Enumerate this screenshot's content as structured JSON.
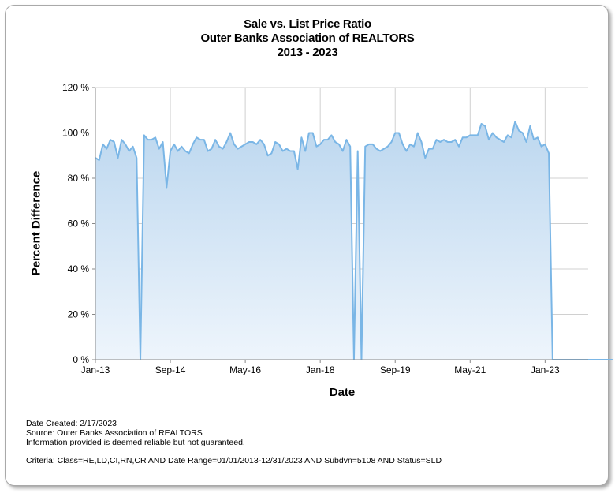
{
  "chart_data": {
    "type": "area",
    "title": [
      "Sale vs. List Price Ratio",
      "Outer Banks Association of REALTORS",
      "2013 - 2023"
    ],
    "ylabel": "Percent Difference",
    "xlabel": "Date",
    "ylim": [
      0,
      120
    ],
    "yticks": [
      "0 %",
      "20 %",
      "40 %",
      "60 %",
      "80 %",
      "100 %",
      "120 %"
    ],
    "xticks": [
      "Jan-13",
      "Sep-14",
      "May-16",
      "Jan-18",
      "Sep-19",
      "May-21",
      "Jan-23"
    ],
    "grid": true,
    "series": [
      {
        "start_month": "Jan-13",
        "values": [
          89,
          88,
          95,
          93,
          97,
          96,
          89,
          97,
          95,
          92,
          94,
          89,
          0,
          99,
          97,
          97,
          98,
          93,
          96,
          76,
          92,
          95,
          92,
          94,
          92,
          91,
          95,
          98,
          97,
          97,
          92,
          93,
          97,
          94,
          93,
          96,
          100,
          95,
          93,
          94,
          95,
          96,
          96,
          95,
          97,
          95,
          90,
          91,
          96,
          95,
          92,
          93,
          92,
          92,
          84,
          98,
          92,
          100,
          100,
          94,
          95,
          97,
          97,
          99,
          96,
          95,
          92,
          97,
          94,
          0,
          92,
          0,
          94,
          95,
          95,
          93,
          92,
          93,
          94,
          96,
          100,
          100,
          95,
          92,
          95,
          94,
          100,
          96,
          89,
          93,
          93,
          97,
          96,
          97,
          96,
          96,
          97,
          94,
          98,
          98,
          99,
          99,
          99,
          104,
          103,
          97,
          100,
          98,
          97,
          96,
          99,
          98,
          105,
          101,
          100,
          96,
          103,
          97,
          98,
          94,
          95,
          91,
          0,
          0,
          0,
          0,
          0,
          0,
          0,
          0,
          0,
          0,
          0,
          0,
          0,
          0,
          0,
          0,
          0
        ]
      }
    ]
  },
  "footer": {
    "date_created": "Date Created: 2/17/2023",
    "source": "Source: Outer Banks Association of REALTORS",
    "disclaimer": "Information provided is deemed reliable but not guaranteed.",
    "criteria": "Criteria: Class=RE,LD,CI,RN,CR AND Date Range=01/01/2013-12/31/2023 AND Subdvn=5108 AND Status=SLD"
  },
  "colors": {
    "line": "#7ab6e6",
    "fill_top": "#bcd7ef",
    "fill_bottom": "#eef5fc",
    "grid": "#d0d0d0"
  }
}
